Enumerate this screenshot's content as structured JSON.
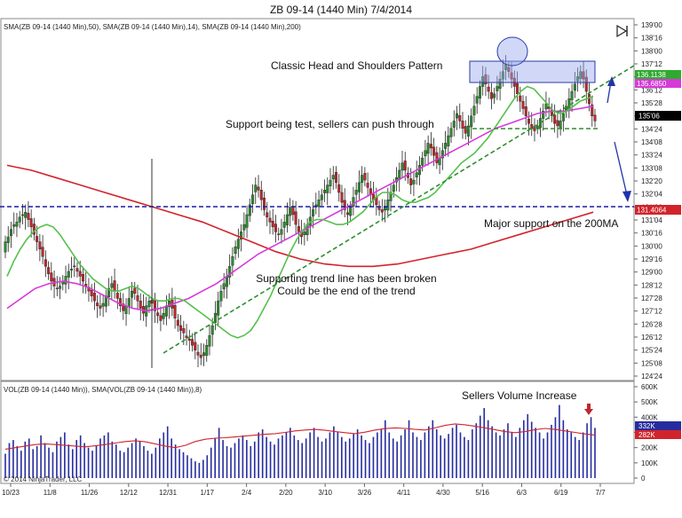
{
  "window_title": "ZB 09-14 (1440 Min)  7/4/2014",
  "indicator_label": "SMA(ZB 09-14 (1440 Min),50), SMA(ZB 09-14 (1440 Min),14), SMA(ZB 09-14 (1440 Min),200)",
  "volume_label": "VOL(ZB 09-14 (1440 Min)), SMA(VOL(ZB 09-14 (1440 Min)),8)",
  "copyright": "© 2014 NinjaTrader, LLC",
  "annotations": {
    "head_shoulders": "Classic Head and Shoulders Pattern",
    "support_test": "Support being test, sellers can push through",
    "major_support": "Major support on the 200MA",
    "trend_broken_1": "Supporting trend line has been broken",
    "trend_broken_2": "Could be the end of the trend",
    "sellers_volume": "Sellers Volume Increase"
  },
  "price_tags": {
    "sma14": "136.1138",
    "sma50": "135.6850",
    "last": "135'06",
    "sma200": "131.4064"
  },
  "volume_tags": {
    "volume": "332K",
    "sma": "282K"
  },
  "colors": {
    "up_candle": "#2e8b2e",
    "down_candle": "#c0282d",
    "sma14": "#55c04a",
    "sma50": "#d63ad8",
    "sma200": "#d2232a",
    "volume_bar": "#262c9e",
    "support_line": "#1a1aa8",
    "trend_line": "#2f8f2f",
    "highlight_box": "#9aa9ee"
  },
  "chart_data": [
    {
      "type": "candlestick",
      "title": "ZB 09-14 (1440 Min)  7/4/2014",
      "x_tick_labels": [
        "10/23",
        "11/8",
        "11/26",
        "12/12",
        "12/31",
        "1/17",
        "2/4",
        "2/20",
        "3/10",
        "3/26",
        "4/11",
        "4/30",
        "5/16",
        "6/3",
        "6/19",
        "7/7"
      ],
      "y_tick_labels": [
        "139'00",
        "138'16",
        "138'00",
        "137'12",
        "136'28",
        "136'12",
        "135'28",
        "135'12",
        "134'24",
        "134'08",
        "133'24",
        "133'08",
        "132'20",
        "132'04",
        "131'20",
        "131'04",
        "130'16",
        "130'00",
        "129'16",
        "129'00",
        "128'12",
        "127'28",
        "127'12",
        "126'28",
        "126'12",
        "125'24",
        "125'08",
        "124'24"
      ],
      "ylim": [
        124.75,
        139.0
      ],
      "series": [
        {
          "name": "SMA(ZB 09-14 (1440 Min),14)",
          "indicator": "sma14"
        },
        {
          "name": "SMA(ZB 09-14 (1440 Min),50)",
          "indicator": "sma50"
        },
        {
          "name": "SMA(ZB 09-14 (1440 Min),200)",
          "indicator": "sma200"
        }
      ],
      "close_approx": [
        130.2,
        130.4,
        130.7,
        130.9,
        131.0,
        131.2,
        131.3,
        131.4,
        131.1,
        130.8,
        130.5,
        130.2,
        129.9,
        129.6,
        129.2,
        128.9,
        128.6,
        128.4,
        128.3,
        128.4,
        128.6,
        128.8,
        129.0,
        129.1,
        129.2,
        129.0,
        128.8,
        128.6,
        128.4,
        128.2,
        128.0,
        127.8,
        127.6,
        127.5,
        127.7,
        128.0,
        128.3,
        128.5,
        128.2,
        127.9,
        127.6,
        127.4,
        127.6,
        127.9,
        128.2,
        128.1,
        127.8,
        127.5,
        127.3,
        127.6,
        127.8,
        127.7,
        127.4,
        127.2,
        127.0,
        127.3,
        127.6,
        127.8,
        127.5,
        127.1,
        126.8,
        126.6,
        126.5,
        126.3,
        126.2,
        126.0,
        125.8,
        125.6,
        125.5,
        125.7,
        126.0,
        126.4,
        126.8,
        127.3,
        127.8,
        128.2,
        128.5,
        128.8,
        129.2,
        129.6,
        130.0,
        130.3,
        130.6,
        130.9,
        131.3,
        131.7,
        132.1,
        132.5,
        132.3,
        131.9,
        131.5,
        131.2,
        131.0,
        130.8,
        130.6,
        130.5,
        130.7,
        131.0,
        131.3,
        131.6,
        131.3,
        130.9,
        130.6,
        130.4,
        130.6,
        130.9,
        131.2,
        131.5,
        131.7,
        131.9,
        132.1,
        132.3,
        132.5,
        132.7,
        132.9,
        132.6,
        132.2,
        131.8,
        131.5,
        131.3,
        131.6,
        132.0,
        132.3,
        132.6,
        132.9,
        132.7,
        132.4,
        132.1,
        131.9,
        131.7,
        131.5,
        131.4,
        131.6,
        131.9,
        132.2,
        132.5,
        132.8,
        133.1,
        133.4,
        133.1,
        132.8,
        132.5,
        132.7,
        133.0,
        133.3,
        133.6,
        133.9,
        134.2,
        134.0,
        133.7,
        133.4,
        133.6,
        133.9,
        134.2,
        134.5,
        134.8,
        135.1,
        135.4,
        135.1,
        134.8,
        134.6,
        134.9,
        135.3,
        135.7,
        136.1,
        136.5,
        136.9,
        136.6,
        136.3,
        136.0,
        136.2,
        136.5,
        136.8,
        137.1,
        137.4,
        137.1,
        136.8,
        136.5,
        136.2,
        135.9,
        135.6,
        135.3,
        135.0,
        134.8,
        134.7,
        134.9,
        135.2,
        135.5,
        135.8,
        135.6,
        135.3,
        135.0,
        134.9,
        135.1,
        135.4,
        135.7,
        136.0,
        136.3,
        136.6,
        136.9,
        137.1,
        136.8,
        136.3,
        135.8,
        135.3,
        135.1
      ],
      "sma14_approx": [
        128.8,
        129.4,
        129.9,
        130.3,
        130.6,
        130.8,
        130.9,
        130.8,
        130.5,
        130.1,
        129.7,
        129.3,
        129.0,
        128.7,
        128.5,
        128.3,
        128.2,
        128.2,
        128.3,
        128.4,
        128.3,
        128.1,
        127.9,
        127.8,
        127.8,
        127.9,
        127.9,
        127.8,
        127.6,
        127.4,
        127.2,
        127.0,
        126.8,
        126.6,
        126.4,
        126.3,
        126.4,
        126.6,
        127.0,
        127.5,
        128.0,
        128.6,
        129.2,
        129.8,
        130.3,
        130.7,
        131.0,
        131.1,
        131.1,
        131.0,
        130.9,
        130.9,
        131.0,
        131.2,
        131.4,
        131.7,
        132.0,
        132.2,
        132.2,
        132.1,
        131.9,
        131.8,
        131.8,
        131.9,
        132.0,
        132.2,
        132.5,
        132.8,
        133.1,
        133.4,
        133.6,
        133.8,
        134.1,
        134.4,
        134.8,
        135.2,
        135.6,
        136.0,
        136.3,
        136.5,
        136.4,
        136.1,
        135.8,
        135.5,
        135.4,
        135.5,
        135.7,
        135.9,
        136.0,
        136.1
      ],
      "sma50_approx": [
        127.5,
        127.9,
        128.3,
        128.5,
        128.6,
        128.5,
        128.3,
        128.0,
        127.7,
        127.5,
        127.4,
        127.5,
        127.7,
        127.9,
        128.2,
        128.5,
        128.9,
        129.3,
        129.7,
        130.0,
        130.3,
        130.6,
        130.9,
        131.2,
        131.5,
        131.8,
        132.1,
        132.4,
        132.7,
        133.0,
        133.3,
        133.6,
        133.9,
        134.2,
        134.5,
        134.8,
        135.0,
        135.2,
        135.4,
        135.5,
        135.5,
        135.6,
        135.7
      ],
      "sma200_approx": [
        133.3,
        133.1,
        132.8,
        132.5,
        132.2,
        131.9,
        131.6,
        131.3,
        131.0,
        130.6,
        130.2,
        129.8,
        129.5,
        129.3,
        129.2,
        129.2,
        129.3,
        129.5,
        129.7,
        129.9,
        130.2,
        130.5,
        130.8,
        131.1,
        131.4
      ],
      "volume_ylim": [
        0,
        600
      ],
      "volume_tick_labels": [
        "600K",
        "500K",
        "400K",
        "300K",
        "200K",
        "100K",
        "0"
      ],
      "volume_k_approx": [
        160,
        230,
        250,
        210,
        180,
        240,
        260,
        190,
        210,
        280,
        230,
        200,
        170,
        240,
        270,
        300,
        220,
        190,
        250,
        280,
        230,
        200,
        180,
        210,
        260,
        280,
        300,
        240,
        220,
        180,
        170,
        200,
        230,
        260,
        240,
        210,
        180,
        160,
        200,
        260,
        300,
        340,
        260,
        220,
        190,
        170,
        150,
        130,
        110,
        100,
        120,
        150,
        200,
        260,
        330,
        250,
        210,
        200,
        230,
        260,
        280,
        250,
        210,
        240,
        300,
        320,
        270,
        240,
        220,
        260,
        280,
        300,
        330,
        280,
        250,
        230,
        260,
        300,
        330,
        270,
        240,
        260,
        300,
        340,
        300,
        270,
        240,
        260,
        290,
        320,
        280,
        250,
        230,
        270,
        300,
        320,
        380,
        300,
        260,
        240,
        280,
        320,
        380,
        300,
        270,
        250,
        300,
        340,
        380,
        320,
        280,
        260,
        290,
        330,
        350,
        300,
        270,
        250,
        320,
        360,
        410,
        460,
        380,
        340,
        300,
        280,
        320,
        360,
        300,
        270,
        330,
        380,
        420,
        370,
        330,
        300,
        260,
        300,
        350,
        400,
        480,
        380,
        320,
        300,
        270,
        250,
        300,
        360,
        400,
        330
      ],
      "volume_sma_k_approx": [
        190,
        200,
        210,
        220,
        225,
        220,
        215,
        210,
        205,
        212,
        220,
        230,
        240,
        245,
        238,
        225,
        210,
        200,
        215,
        240,
        255,
        262,
        265,
        270,
        276,
        282,
        288,
        292,
        300,
        310,
        316,
        320,
        314,
        305,
        298,
        292,
        302,
        316,
        325,
        330,
        326,
        320,
        316,
        330,
        346,
        356,
        350,
        340,
        330,
        318,
        305,
        298,
        305,
        318,
        326,
        320,
        310,
        300,
        290,
        282
      ]
    }
  ]
}
